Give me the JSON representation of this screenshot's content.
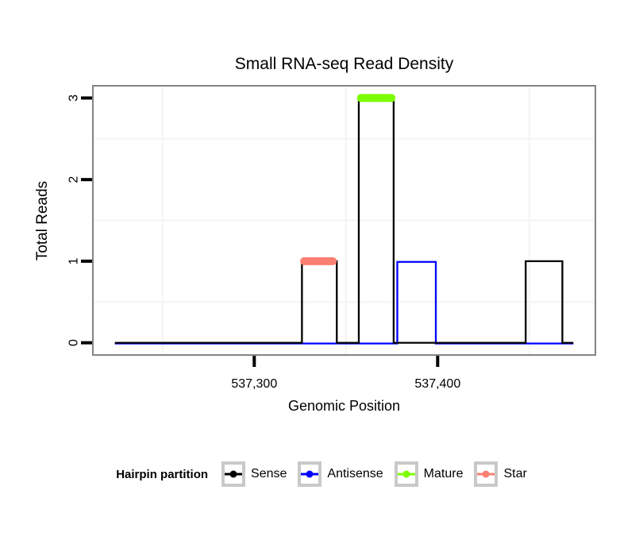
{
  "chart_data": {
    "type": "line",
    "subtype": "read-coverage-step",
    "title": "Small RNA-seq Read Density",
    "xlabel": "Genomic Position",
    "ylabel": "Total Reads",
    "xlim": [
      537212,
      537486
    ],
    "ylim": [
      -0.15,
      3.15
    ],
    "x_ticks": [
      {
        "value": 537300,
        "label": "537,300"
      },
      {
        "value": 537400,
        "label": "537,400"
      }
    ],
    "y_ticks": [
      {
        "value": 0,
        "label": "0"
      },
      {
        "value": 1,
        "label": "1"
      },
      {
        "value": 2,
        "label": "2"
      },
      {
        "value": 3,
        "label": "3"
      }
    ],
    "grid": {
      "x_minor": [
        537250,
        537350,
        537450
      ],
      "y_minor": [
        0.5,
        1.5,
        2.5
      ],
      "color": "#f3f3f3"
    },
    "series": [
      {
        "name": "Sense",
        "color": "#000000",
        "style": "step-line",
        "segments": [
          {
            "start": 537224,
            "end": 537326,
            "reads": 0
          },
          {
            "start": 537326,
            "end": 537345,
            "reads": 1
          },
          {
            "start": 537345,
            "end": 537357,
            "reads": 0
          },
          {
            "start": 537357,
            "end": 537376,
            "reads": 3
          },
          {
            "start": 537376,
            "end": 537448,
            "reads": 0
          },
          {
            "start": 537448,
            "end": 537468,
            "reads": 1
          },
          {
            "start": 537468,
            "end": 537474,
            "reads": 0
          }
        ]
      },
      {
        "name": "Antisense",
        "color": "#0000ff",
        "style": "step-line",
        "segments": [
          {
            "start": 537224,
            "end": 537378,
            "reads": 0
          },
          {
            "start": 537378,
            "end": 537399,
            "reads": 1
          },
          {
            "start": 537399,
            "end": 537474,
            "reads": 0
          }
        ]
      },
      {
        "name": "Mature",
        "color": "#7cfc00",
        "style": "cap-bar",
        "segments": [
          {
            "start": 537356,
            "end": 537377,
            "reads": 3
          }
        ]
      },
      {
        "name": "Star",
        "color": "#fa8072",
        "style": "cap-bar",
        "segments": [
          {
            "start": 537325,
            "end": 537345,
            "reads": 1
          }
        ]
      }
    ]
  },
  "legend": {
    "title": "Hairpin partition",
    "items": [
      {
        "label": "Sense",
        "color": "#000000"
      },
      {
        "label": "Antisense",
        "color": "#0000ff"
      },
      {
        "label": "Mature",
        "color": "#7cfc00"
      },
      {
        "label": "Star",
        "color": "#fa8072"
      }
    ]
  },
  "colors": {
    "panel_border": "#848484",
    "axis_tick": "#000000",
    "gridline": "#f3f3f3"
  }
}
